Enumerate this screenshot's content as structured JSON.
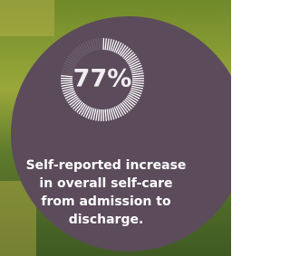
{
  "chart_data": {
    "type": "gauge",
    "values": [
      77
    ],
    "value_labels": [
      "77%"
    ],
    "ylim": [
      0,
      100
    ],
    "color": "#ffffff",
    "caption_lines": [
      "Self-reported increase",
      "in overall self-care",
      "from admission to",
      "discharge."
    ]
  }
}
